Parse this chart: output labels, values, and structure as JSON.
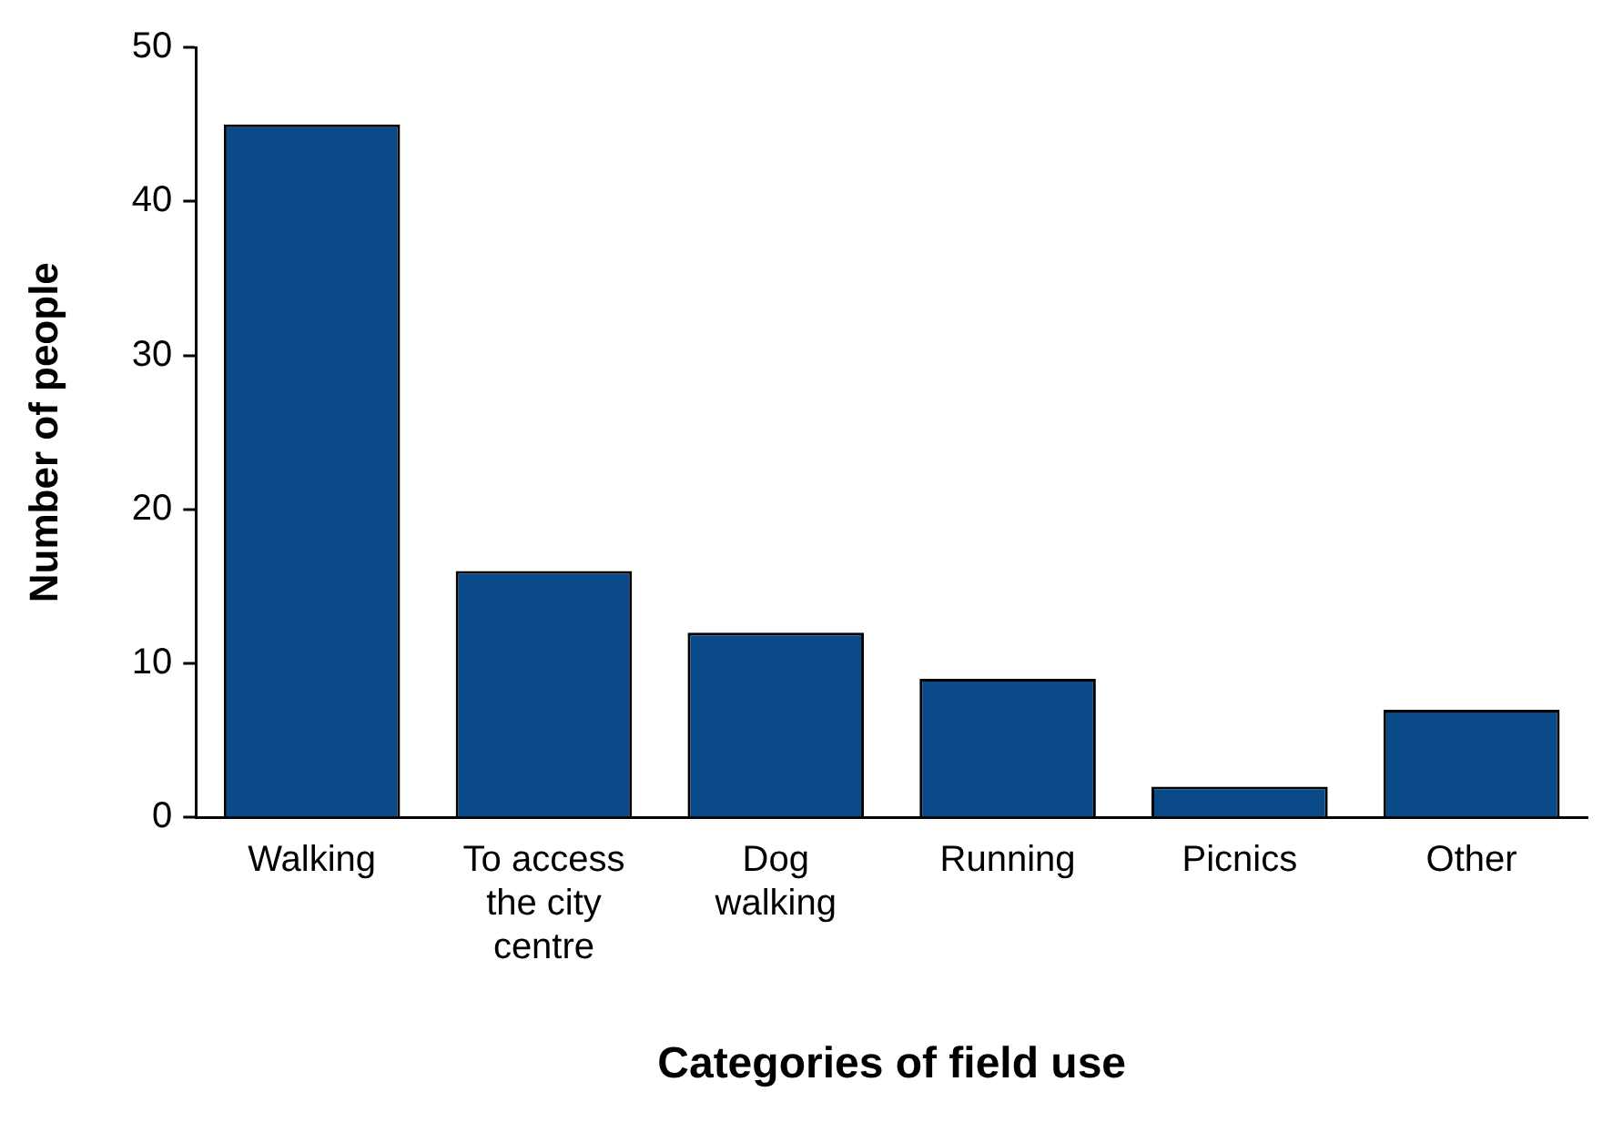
{
  "chart_data": {
    "type": "bar",
    "xlabel": "Categories of field use",
    "ylabel": "Number of people",
    "categories": [
      "Walking",
      "To access the city centre",
      "Dog walking",
      "Running",
      "Picnics",
      "Other"
    ],
    "values": [
      45,
      16,
      12,
      9,
      2,
      7
    ],
    "color": "#0b4a89",
    "ylim": [
      0,
      50
    ],
    "yticks": [
      0,
      10,
      20,
      30,
      40,
      50
    ],
    "grid": false,
    "legend": false
  }
}
